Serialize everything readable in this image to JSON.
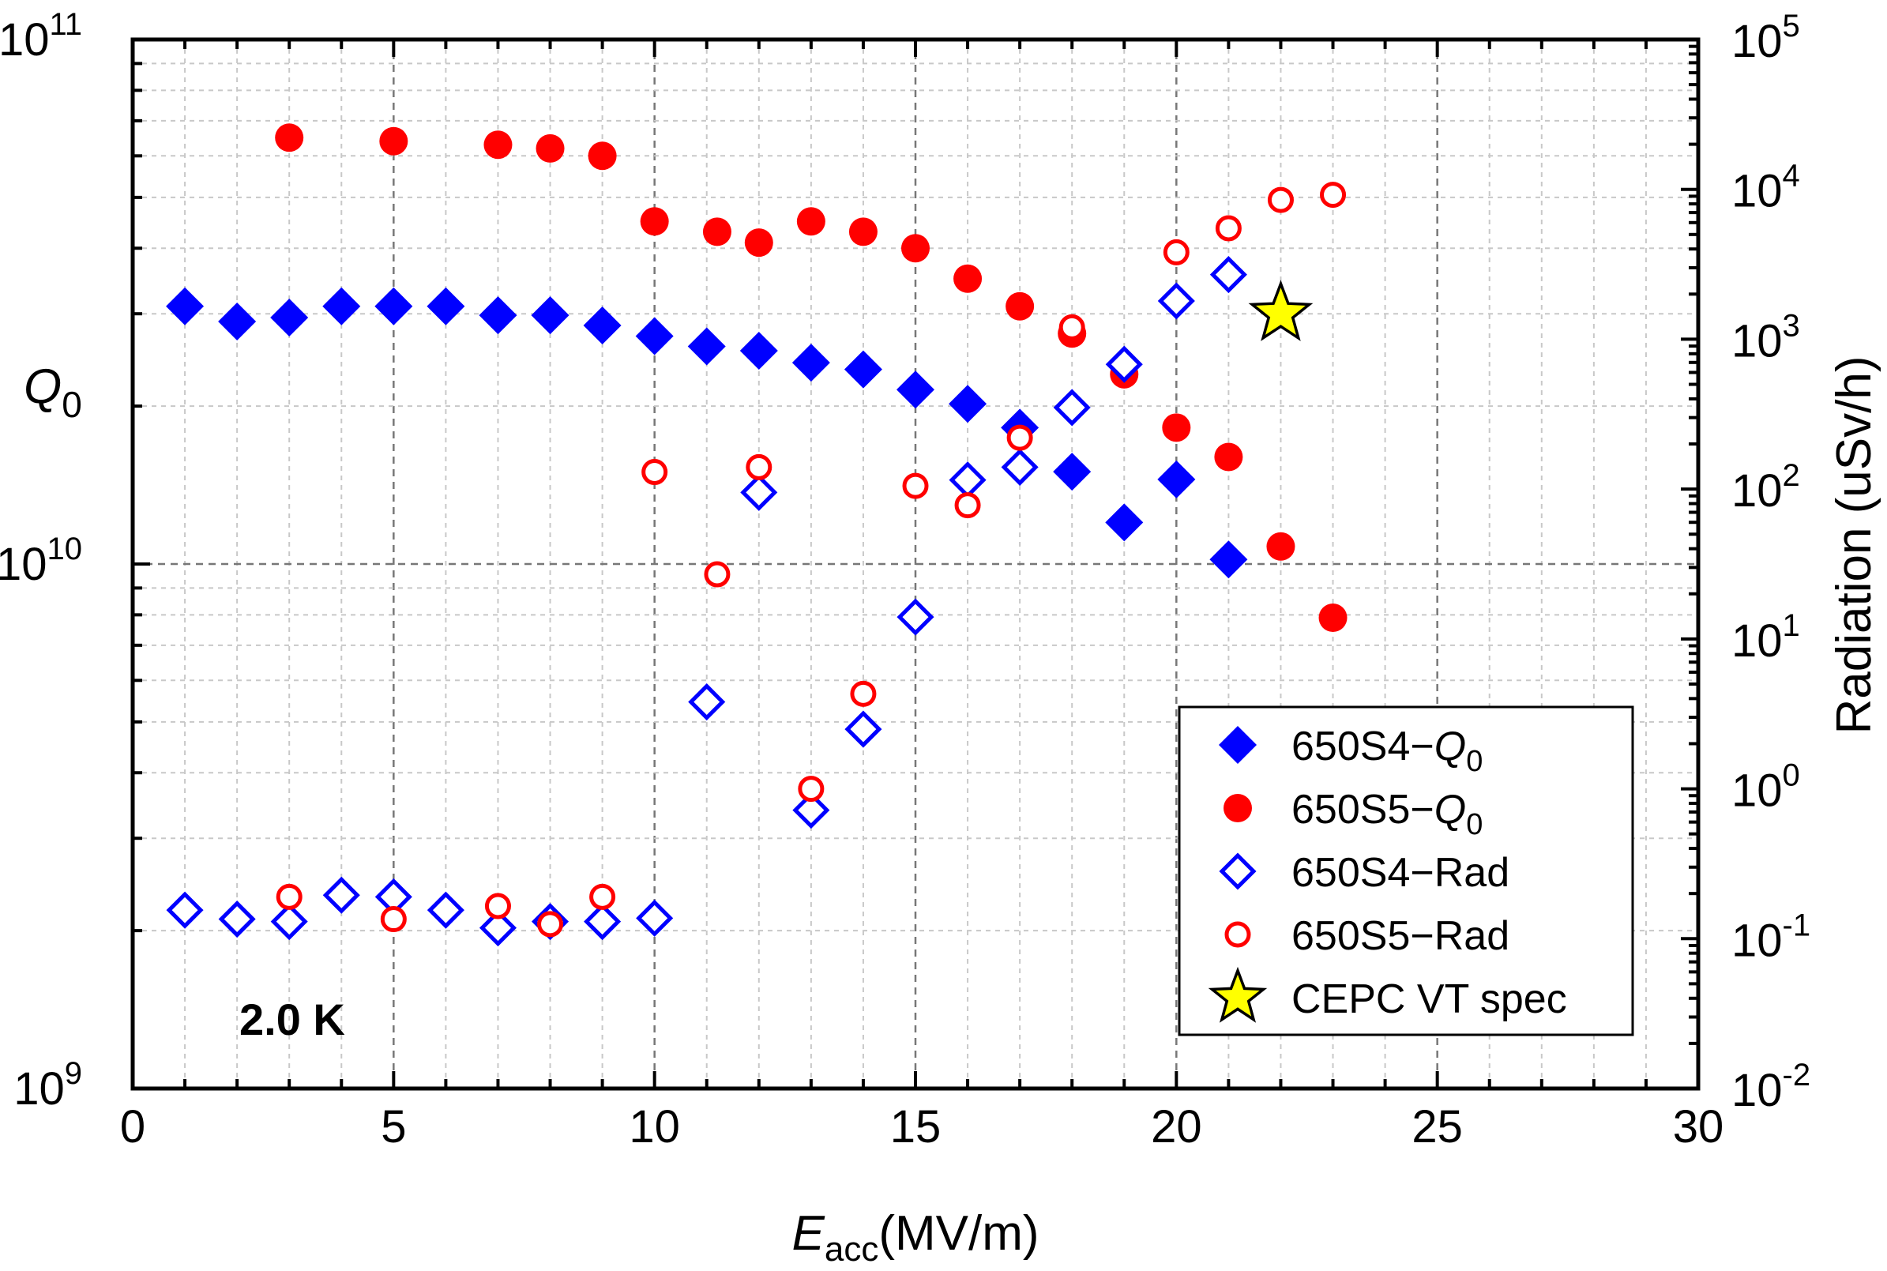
{
  "chart_data": {
    "type": "scatter",
    "xlabel": {
      "main": "E",
      "sub": "acc",
      "unit": "(MV/m)"
    },
    "ylabel_left": {
      "main": "Q",
      "sub": "0"
    },
    "ylabel_right": "Radiation (uSv/h)",
    "xlim": [
      0,
      30
    ],
    "ylim_left": [
      1000000000.0,
      100000000000.0
    ],
    "ylim_right": [
      0.01,
      100000
    ],
    "xscale": "linear",
    "yscale": "log",
    "x_ticks": [
      "0",
      "5",
      "10",
      "15",
      "20",
      "25",
      "30"
    ],
    "y_ticks_left": [
      {
        "base": "10",
        "exp": "9"
      },
      {
        "base": "10",
        "exp": "10"
      },
      {
        "base": "10",
        "exp": "11"
      }
    ],
    "y_ticks_right": [
      {
        "base": "10",
        "exp": "-2"
      },
      {
        "base": "10",
        "exp": "-1"
      },
      {
        "base": "10",
        "exp": "0"
      },
      {
        "base": "10",
        "exp": "1"
      },
      {
        "base": "10",
        "exp": "2"
      },
      {
        "base": "10",
        "exp": "3"
      },
      {
        "base": "10",
        "exp": "4"
      },
      {
        "base": "10",
        "exp": "5"
      }
    ],
    "grid": true,
    "annotation": "2.0 K",
    "legend_position": "bottom-right",
    "series": [
      {
        "name": "650S4-Q0",
        "legend_main": "650S4−Q",
        "legend_sub": "0",
        "axis": "left",
        "marker": "diamond-filled",
        "color": "#0000ff",
        "x": [
          1,
          2,
          3,
          4,
          5,
          6,
          7,
          8,
          9,
          10,
          11,
          12,
          13,
          14,
          15,
          16,
          17,
          18,
          19,
          20,
          21
        ],
        "y": [
          31000000000.0,
          29000000000.0,
          29500000000.0,
          31000000000.0,
          31000000000.0,
          31000000000.0,
          29800000000.0,
          29800000000.0,
          28500000000.0,
          27200000000.0,
          26000000000.0,
          25500000000.0,
          24200000000.0,
          23500000000.0,
          21500000000.0,
          20200000000.0,
          18200000000.0,
          15000000000.0,
          12000000000.0,
          14500000000.0,
          10200000000.0
        ]
      },
      {
        "name": "650S5-Q0",
        "legend_main": "650S5−Q",
        "legend_sub": "0",
        "axis": "left",
        "marker": "circle-filled",
        "color": "#ff0000",
        "x": [
          3,
          5,
          7,
          8,
          9,
          10,
          11.2,
          12,
          13,
          14,
          15,
          16,
          17,
          18,
          19,
          20,
          21,
          22,
          23
        ],
        "y": [
          65000000000.0,
          64000000000.0,
          63000000000.0,
          62000000000.0,
          60000000000.0,
          45000000000.0,
          43000000000.0,
          41000000000.0,
          45000000000.0,
          43000000000.0,
          40000000000.0,
          35000000000.0,
          31000000000.0,
          27500000000.0,
          23000000000.0,
          18200000000.0,
          16000000000.0,
          10800000000.0,
          7900000000.0
        ]
      },
      {
        "name": "650S4-Rad",
        "legend_main": "650S4−Rad",
        "axis": "right",
        "marker": "diamond-open",
        "color": "#0000ff",
        "x": [
          1,
          2,
          3,
          4,
          5,
          6,
          7,
          8,
          9,
          10,
          11,
          12,
          13,
          14,
          15,
          16,
          17,
          18,
          19,
          20,
          21
        ],
        "y": [
          0.155,
          0.135,
          0.13,
          0.195,
          0.19,
          0.155,
          0.118,
          0.13,
          0.13,
          0.137,
          3.8,
          95,
          0.72,
          2.5,
          14,
          115,
          140,
          350,
          680,
          1800,
          2700
        ]
      },
      {
        "name": "650S5-Rad",
        "legend_main": "650S5−Rad",
        "axis": "right",
        "marker": "circle-open",
        "color": "#ff0000",
        "x": [
          3,
          5,
          7,
          8,
          9,
          10,
          11.2,
          12,
          13,
          14,
          15,
          16,
          17,
          18,
          20,
          21,
          22,
          23
        ],
        "y": [
          0.19,
          0.135,
          0.165,
          0.125,
          0.19,
          130,
          27,
          140,
          1.0,
          4.3,
          105,
          78,
          220,
          1200,
          3800,
          5500,
          8500,
          9200
        ]
      },
      {
        "name": "CEPC VT spec",
        "legend_main": "CEPC VT spec",
        "axis": "left",
        "marker": "star",
        "color": "#ffff00",
        "x": [
          22
        ],
        "y": [
          30000000000.0
        ]
      }
    ]
  }
}
